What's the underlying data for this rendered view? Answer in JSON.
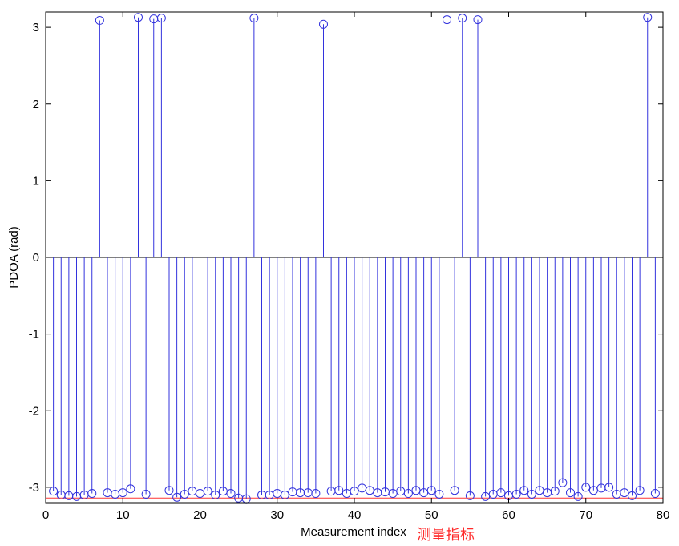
{
  "chart_data": {
    "type": "stem",
    "xlabel": "Measurement index",
    "ylabel": "PDOA (rad)",
    "annotation": "测量指标",
    "xlim": [
      0,
      80
    ],
    "ylim": [
      -3.2,
      3.2
    ],
    "xticks": [
      "0",
      "10",
      "20",
      "30",
      "40",
      "50",
      "60",
      "70",
      "80"
    ],
    "yticks": [
      "-3",
      "-2",
      "-1",
      "0",
      "1",
      "2",
      "3"
    ],
    "grid": false,
    "reference_line": -3.14,
    "colors": {
      "stem": "#3333dd",
      "reference_line": "#ff3333",
      "axes": "#000000"
    },
    "series": [
      {
        "x": [
          1,
          2,
          3,
          4,
          5,
          6,
          7,
          8,
          9,
          10,
          11,
          12,
          13,
          14,
          15,
          16,
          17,
          18,
          19,
          20,
          21,
          22,
          23,
          24,
          25,
          26,
          27,
          28,
          29,
          30,
          31,
          32,
          33,
          34,
          35,
          36,
          37,
          38,
          39,
          40,
          41,
          42,
          43,
          44,
          45,
          46,
          47,
          48,
          49,
          50,
          51,
          52,
          53,
          54,
          55,
          56,
          57,
          58,
          59,
          60,
          61,
          62,
          63,
          64,
          65,
          66,
          67,
          68,
          69,
          70,
          71,
          72,
          73,
          74,
          75,
          76,
          77,
          78,
          79
        ],
        "y": [
          -3.05,
          -3.1,
          -3.11,
          -3.12,
          -3.1,
          -3.08,
          3.09,
          -3.07,
          -3.09,
          -3.07,
          -3.02,
          3.13,
          -3.09,
          3.11,
          3.12,
          -3.04,
          -3.13,
          -3.09,
          -3.05,
          -3.08,
          -3.05,
          -3.1,
          -3.05,
          -3.08,
          -3.14,
          -3.15,
          3.12,
          -3.1,
          -3.1,
          -3.08,
          -3.1,
          -3.06,
          -3.07,
          -3.07,
          -3.08,
          3.04,
          -3.05,
          -3.04,
          -3.08,
          -3.05,
          -3.01,
          -3.04,
          -3.07,
          -3.06,
          -3.08,
          -3.05,
          -3.08,
          -3.04,
          -3.07,
          -3.04,
          -3.09,
          3.1,
          -3.04,
          3.12,
          -3.11,
          3.1,
          -3.12,
          -3.09,
          -3.07,
          -3.11,
          -3.09,
          -3.04,
          -3.09,
          -3.04,
          -3.07,
          -3.05,
          -2.94,
          -3.07,
          -3.12,
          -3.0,
          -3.04,
          -3.01,
          -3.0,
          -3.09,
          -3.07,
          -3.11,
          -3.04,
          3.13,
          -3.08
        ]
      }
    ]
  }
}
